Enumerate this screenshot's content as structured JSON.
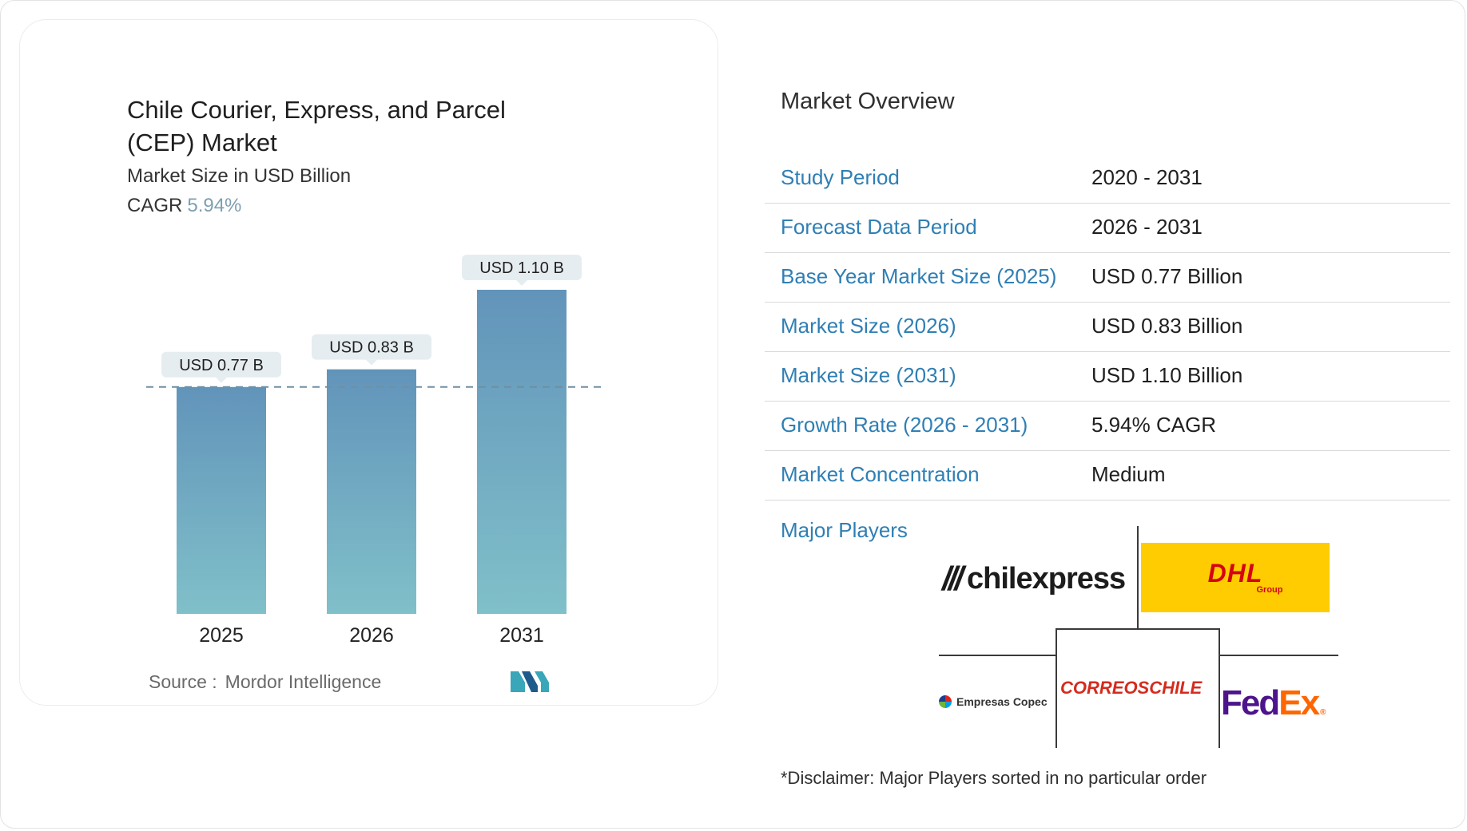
{
  "chart_data": {
    "type": "bar",
    "title": "Chile Courier, Express, and Parcel (CEP) Market",
    "subtitle": "Market Size in USD Billion",
    "cagr_label": "CAGR",
    "cagr_value": "5.94%",
    "categories": [
      "2025",
      "2026",
      "2031"
    ],
    "values": [
      0.77,
      0.83,
      1.1
    ],
    "data_labels": [
      "USD 0.77 B",
      "USD 0.83 B",
      "USD 1.10 B"
    ],
    "reference_line": 0.77,
    "ylim": [
      0,
      1.1
    ],
    "grid": false,
    "colors": {
      "bar_top": "#6294ba",
      "bar_bottom": "#80c0c9",
      "label_bg": "#e6edf0",
      "reference_line": "#6e8fa3"
    }
  },
  "source": {
    "label": "Source :",
    "value": "Mordor Intelligence"
  },
  "overview": {
    "title": "Market Overview",
    "rows": [
      {
        "key": "Study Period",
        "value": "2020 - 2031"
      },
      {
        "key": "Forecast Data Period",
        "value": "2026 - 2031"
      },
      {
        "key": "Base Year Market Size (2025)",
        "value": "USD 0.77 Billion"
      },
      {
        "key": "Market Size (2026)",
        "value": "USD 0.83 Billion"
      },
      {
        "key": "Market Size (2031)",
        "value": "USD 1.10 Billion"
      },
      {
        "key": "Growth Rate (2026 - 2031)",
        "value": "5.94% CAGR"
      },
      {
        "key": "Market Concentration",
        "value": "Medium"
      }
    ],
    "key_color": "#2f7fb4"
  },
  "players": {
    "label": "Major Players",
    "logos": {
      "chilexpress": "chilexpress",
      "dhl": "DHL",
      "dhl_group": "Group",
      "copec": "Empresas Copec",
      "correos": "CORREOSCHILE",
      "fedex_fed": "Fed",
      "fedex_ex": "Ex",
      "fedex_r": "®"
    }
  },
  "disclaimer": "*Disclaimer: Major Players sorted in no particular order"
}
